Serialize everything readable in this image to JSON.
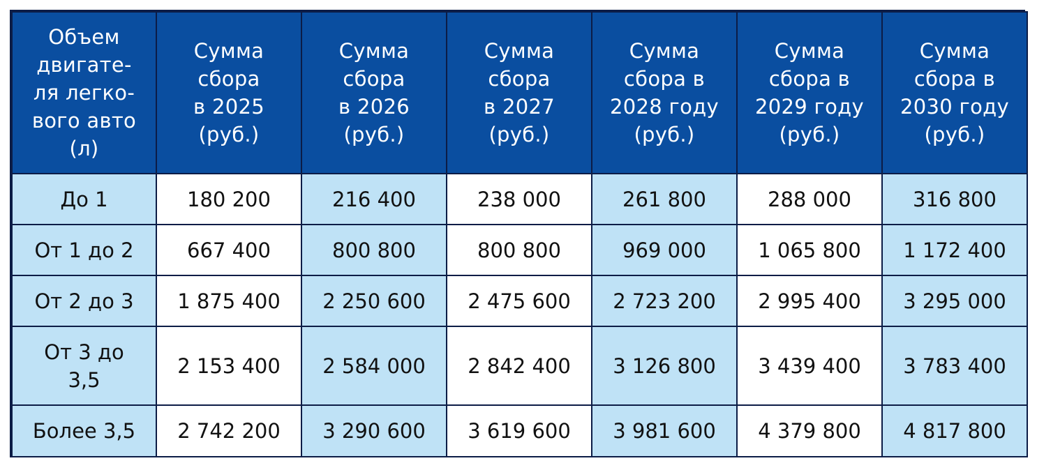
{
  "table": {
    "headers": [
      "Объем двигате-ля легко-вого авто (л)",
      "Сумма сбора в 2025 (руб.)",
      "Сумма сбора в 2026 (руб.)",
      "Сумма сбора в 2027 (руб.)",
      "Сумма сбора в 2028 году (руб.)",
      "Сумма сбора в 2029 году (руб.)",
      "Сумма сбора в 2030 году (руб.)"
    ],
    "header_lines": [
      [
        "Объем",
        "двигате-",
        "ля легко-",
        "вого авто",
        "(л)"
      ],
      [
        "Сумма",
        "сбора",
        "в 2025",
        "(руб.)"
      ],
      [
        "Сумма",
        "сбора",
        "в 2026",
        "(руб.)"
      ],
      [
        "Сумма",
        "сбора",
        "в 2027",
        "(руб.)"
      ],
      [
        "Сумма",
        "сбора в",
        "2028 году",
        "(руб.)"
      ],
      [
        "Сумма",
        "сбора в",
        "2029 году",
        "(руб.)"
      ],
      [
        "Сумма",
        "сбора в",
        "2030 году",
        "(руб.)"
      ]
    ],
    "rows": [
      [
        "До 1",
        "180 200",
        "216 400",
        "238 000",
        "261 800",
        "288 000",
        "316 800"
      ],
      [
        "От 1 до 2",
        "667 400",
        "800 800",
        "800 800",
        "969 000",
        "1 065 800",
        "1 172 400"
      ],
      [
        "От 2 до 3",
        "1 875 400",
        "2 250 600",
        "2 475 600",
        "2 723 200",
        "2 995 400",
        "3 295 000"
      ],
      [
        "От 3 до 3,5",
        "2 153 400",
        "2 584 000",
        "2 842 400",
        "3 126 800",
        "3 439 400",
        "3 783 400"
      ],
      [
        "Более 3,5",
        "2 742 200",
        "3 290 600",
        "3 619 600",
        "3 981 600",
        "4 379 800",
        "4 817 800"
      ]
    ]
  },
  "colors": {
    "header_bg": "#0a4ea0",
    "header_text": "#ffffff",
    "light_cell": "#bfe2f6",
    "white_cell": "#ffffff",
    "border": "#0c1c46"
  }
}
